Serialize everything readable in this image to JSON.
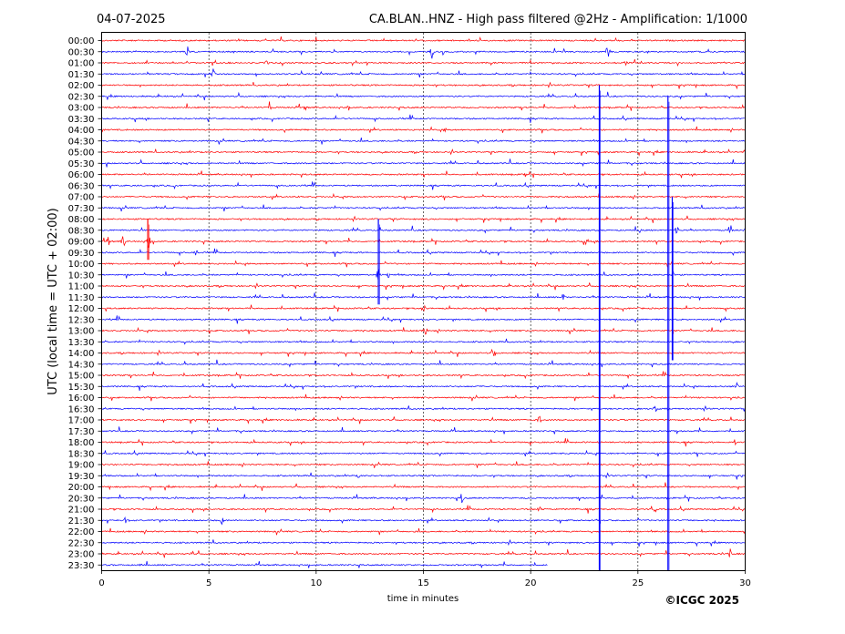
{
  "chart_data": {
    "type": "line",
    "title": "CA.BLAN..HNZ - High pass filtered @2Hz - Amplification: 1/1000",
    "date": "04-07-2025",
    "xlabel": "time in minutes",
    "ylabel": "UTC (local time = UTC + 02:00)",
    "credit": "©ICGC 2025",
    "xlim": [
      0,
      30
    ],
    "xticks": [
      0,
      5,
      10,
      15,
      20,
      25,
      30
    ],
    "grid_x": true,
    "rows": [
      "00:00",
      "00:30",
      "01:00",
      "01:30",
      "02:00",
      "02:30",
      "03:00",
      "03:30",
      "04:00",
      "04:30",
      "05:00",
      "05:30",
      "06:00",
      "06:30",
      "07:00",
      "07:30",
      "08:00",
      "08:30",
      "09:00",
      "09:30",
      "10:00",
      "10:30",
      "11:00",
      "11:30",
      "12:00",
      "12:30",
      "13:00",
      "13:30",
      "14:00",
      "14:30",
      "15:00",
      "15:30",
      "16:00",
      "16:30",
      "17:00",
      "17:30",
      "18:00",
      "18:30",
      "19:00",
      "19:30",
      "20:00",
      "20:30",
      "21:00",
      "21:30",
      "22:00",
      "22:30",
      "23:00",
      "23:30"
    ],
    "row_colors": [
      "#ff0000",
      "#0000ff"
    ],
    "last_row_end_minute": 20.8,
    "events": [
      {
        "row": "00:30",
        "minute": 4.0,
        "amp": 0.9
      },
      {
        "row": "00:30",
        "minute": 15.4,
        "amp": 0.8
      },
      {
        "row": "00:30",
        "minute": 23.6,
        "amp": 0.9
      },
      {
        "row": "01:00",
        "minute": 7.7,
        "amp": 0.4
      },
      {
        "row": "01:00",
        "minute": 24.4,
        "amp": 0.5
      },
      {
        "row": "01:30",
        "minute": 5.2,
        "amp": 0.6
      },
      {
        "row": "03:00",
        "minute": 7.8,
        "amp": 0.8
      },
      {
        "row": "03:00",
        "minute": 9.5,
        "amp": 0.4
      },
      {
        "row": "03:00",
        "minute": 11.5,
        "amp": 0.4
      },
      {
        "row": "04:00",
        "minute": 16.0,
        "amp": 0.3
      },
      {
        "row": "06:00",
        "minute": 19.8,
        "amp": 0.7
      },
      {
        "row": "08:30",
        "minute": 25.1,
        "amp": 0.4
      },
      {
        "row": "08:30",
        "minute": 26.8,
        "amp": 0.8
      },
      {
        "row": "08:30",
        "minute": 29.3,
        "amp": 0.8
      },
      {
        "row": "09:00",
        "minute": 0.3,
        "amp": 0.8
      },
      {
        "row": "09:00",
        "minute": 1.0,
        "amp": 1.0
      },
      {
        "row": "09:00",
        "minute": 2.2,
        "amp": 1.0
      },
      {
        "row": "09:00",
        "minute": 22.6,
        "amp": 0.6
      },
      {
        "row": "09:30",
        "minute": 4.4,
        "amp": 0.5
      },
      {
        "row": "10:30",
        "minute": 12.9,
        "amp": 1.0
      },
      {
        "row": "10:30",
        "minute": 13.4,
        "amp": 0.6
      },
      {
        "row": "10:30",
        "minute": 26.6,
        "amp": 0.7
      },
      {
        "row": "11:30",
        "minute": 21.5,
        "amp": 0.5
      },
      {
        "row": "12:00",
        "minute": 15.0,
        "amp": 0.6
      },
      {
        "row": "13:00",
        "minute": 15.1,
        "amp": 0.6
      },
      {
        "row": "14:00",
        "minute": 18.3,
        "amp": 0.6
      },
      {
        "row": "15:30",
        "minute": 29.6,
        "amp": 0.6
      },
      {
        "row": "16:30",
        "minute": 25.8,
        "amp": 0.4
      },
      {
        "row": "17:00",
        "minute": 20.4,
        "amp": 0.6
      },
      {
        "row": "18:00",
        "minute": 29.5,
        "amp": 0.4
      },
      {
        "row": "19:30",
        "minute": 12.0,
        "amp": 0.4
      },
      {
        "row": "20:30",
        "minute": 16.8,
        "amp": 0.7
      },
      {
        "row": "21:00",
        "minute": 20.4,
        "amp": 0.5
      },
      {
        "row": "21:00",
        "minute": 25.8,
        "amp": 0.4
      },
      {
        "row": "21:30",
        "minute": 1.1,
        "amp": 0.5
      },
      {
        "row": "21:30",
        "minute": 5.6,
        "amp": 0.5
      },
      {
        "row": "23:00",
        "minute": 4.2,
        "amp": 0.6
      },
      {
        "row": "23:00",
        "minute": 29.3,
        "amp": 0.8
      },
      {
        "row": "23:30",
        "minute": 1.8,
        "amp": 0.3
      }
    ],
    "tall_spikes": [
      {
        "minute": 2.15,
        "from_row": "08:00",
        "to_row": "09:30",
        "color": "#ff0000"
      },
      {
        "minute": 12.9,
        "from_row": "08:00",
        "to_row": "11:30",
        "color": "#0000ff"
      },
      {
        "minute": 23.2,
        "from_row": "02:00",
        "to_row": "23:30",
        "color": "#0000ff"
      },
      {
        "minute": 26.4,
        "from_row": "02:30",
        "to_row": "23:30",
        "color": "#0000ff"
      },
      {
        "minute": 26.6,
        "from_row": "07:00",
        "to_row": "14:00",
        "color": "#0000ff"
      }
    ]
  }
}
